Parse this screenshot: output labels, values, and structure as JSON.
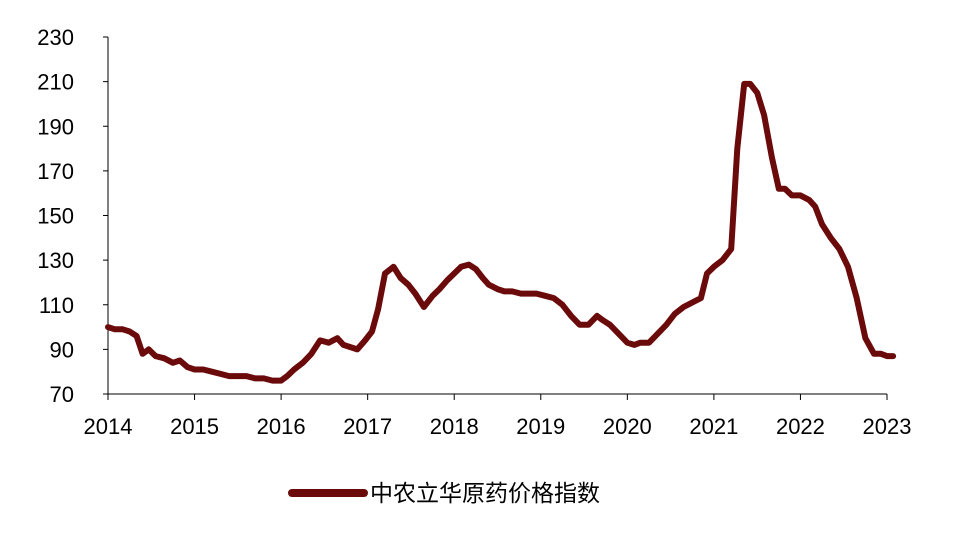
{
  "chart_data": {
    "type": "line",
    "title": "",
    "xlabel": "",
    "ylabel": "",
    "x_ticks": [
      "2014",
      "2015",
      "2016",
      "2017",
      "2018",
      "2019",
      "2020",
      "2021",
      "2022",
      "2023"
    ],
    "y_ticks": [
      "70",
      "90",
      "110",
      "130",
      "150",
      "170",
      "190",
      "210",
      "230"
    ],
    "xlim": [
      2014.0,
      2023.1
    ],
    "ylim": [
      70,
      230
    ],
    "grid": false,
    "legend_position": "bottom-center",
    "series": [
      {
        "name": "中农立华原药价格指数",
        "color": "#6b0a0a",
        "x": [
          2014.0,
          2014.08,
          2014.17,
          2014.25,
          2014.33,
          2014.4,
          2014.47,
          2014.55,
          2014.65,
          2014.75,
          2014.83,
          2014.92,
          2015.0,
          2015.1,
          2015.2,
          2015.3,
          2015.4,
          2015.5,
          2015.6,
          2015.7,
          2015.8,
          2015.9,
          2016.0,
          2016.07,
          2016.15,
          2016.25,
          2016.35,
          2016.45,
          2016.55,
          2016.65,
          2016.72,
          2016.8,
          2016.88,
          2016.97,
          2017.05,
          2017.12,
          2017.2,
          2017.3,
          2017.38,
          2017.47,
          2017.55,
          2017.65,
          2017.75,
          2017.83,
          2017.92,
          2018.0,
          2018.08,
          2018.17,
          2018.25,
          2018.33,
          2018.4,
          2018.5,
          2018.58,
          2018.67,
          2018.77,
          2018.87,
          2018.95,
          2019.05,
          2019.15,
          2019.25,
          2019.35,
          2019.45,
          2019.55,
          2019.65,
          2019.72,
          2019.8,
          2019.9,
          2020.0,
          2020.08,
          2020.15,
          2020.25,
          2020.35,
          2020.45,
          2020.55,
          2020.65,
          2020.75,
          2020.85,
          2020.92,
          2021.0,
          2021.1,
          2021.2,
          2021.27,
          2021.35,
          2021.42,
          2021.5,
          2021.58,
          2021.67,
          2021.75,
          2021.82,
          2021.9,
          2022.0,
          2022.1,
          2022.17,
          2022.25,
          2022.35,
          2022.45,
          2022.55,
          2022.65,
          2022.75,
          2022.85,
          2022.93,
          2023.0,
          2023.07
        ],
        "values": [
          100,
          99,
          99,
          98,
          96,
          88,
          90,
          87,
          86,
          84,
          85,
          82,
          81,
          81,
          80,
          79,
          78,
          78,
          78,
          77,
          77,
          76,
          76,
          78,
          81,
          84,
          88,
          94,
          93,
          95,
          92,
          91,
          90,
          94,
          98,
          108,
          124,
          127,
          122,
          119,
          115,
          109,
          114,
          117,
          121,
          124,
          127,
          128,
          126,
          122,
          119,
          117,
          116,
          116,
          115,
          115,
          115,
          114,
          113,
          110,
          105,
          101,
          101,
          105,
          103,
          101,
          97,
          93,
          92,
          93,
          93,
          97,
          101,
          106,
          109,
          111,
          113,
          124,
          127,
          130,
          135,
          180,
          209,
          209,
          205,
          195,
          176,
          162,
          162,
          159,
          159,
          157,
          154,
          146,
          140,
          135,
          127,
          113,
          95,
          88,
          88,
          87,
          87
        ]
      }
    ]
  }
}
